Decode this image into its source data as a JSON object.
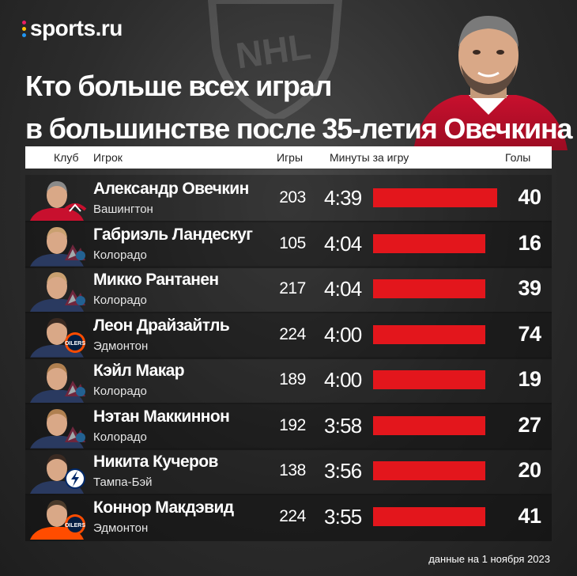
{
  "brand": {
    "logo_text": "sports.ru",
    "dot_colors": [
      "#e91e63",
      "#ffc107",
      "#2196f3"
    ]
  },
  "title": {
    "line1": "Кто больше всех играл",
    "line2": "в большинстве после 35-летия Овечкина"
  },
  "columns": {
    "club": "Клуб",
    "player": "Игрок",
    "games": "Игры",
    "minutes": "Минуты за игру",
    "goals": "Голы"
  },
  "accent_color": "#e3161c",
  "chart_data": {
    "type": "table",
    "title": "Кто больше всех играл в большинстве после 35-летия Овечкина",
    "headers": [
      "Клуб",
      "Игрок",
      "Игры",
      "Минуты за игру",
      "Голы"
    ],
    "bar_metric": "Минуты за игру",
    "rows": [
      {
        "player": "Александр Овечкин",
        "team": "Вашингтон",
        "team_icon": "capitals-logo-icon",
        "games": "203",
        "minutes": "4:39",
        "minutes_seconds": 279,
        "goals": "40"
      },
      {
        "player": "Габриэль Ландескуг",
        "team": "Колорадо",
        "team_icon": "avalanche-logo-icon",
        "games": "105",
        "minutes": "4:04",
        "minutes_seconds": 244,
        "goals": "16"
      },
      {
        "player": "Микко Рантанен",
        "team": "Колорадо",
        "team_icon": "avalanche-logo-icon",
        "games": "217",
        "minutes": "4:04",
        "minutes_seconds": 244,
        "goals": "39"
      },
      {
        "player": "Леон Драйзайтль",
        "team": "Эдмонтон",
        "team_icon": "oilers-logo-icon",
        "games": "224",
        "minutes": "4:00",
        "minutes_seconds": 240,
        "goals": "74"
      },
      {
        "player": "Кэйл Макар",
        "team": "Колорадо",
        "team_icon": "avalanche-logo-icon",
        "games": "189",
        "minutes": "4:00",
        "minutes_seconds": 240,
        "goals": "19"
      },
      {
        "player": "Нэтан Маккиннон",
        "team": "Колорадо",
        "team_icon": "avalanche-logo-icon",
        "games": "192",
        "minutes": "3:58",
        "minutes_seconds": 238,
        "goals": "27"
      },
      {
        "player": "Никита Кучеров",
        "team": "Тампа-Бэй",
        "team_icon": "lightning-logo-icon",
        "games": "138",
        "minutes": "3:56",
        "minutes_seconds": 236,
        "goals": "20"
      },
      {
        "player": "Коннор Макдэвид",
        "team": "Эдмонтон",
        "team_icon": "oilers-logo-icon",
        "games": "224",
        "minutes": "3:55",
        "minutes_seconds": 235,
        "goals": "41"
      }
    ]
  },
  "footnote": "данные на 1 ноября 2023"
}
